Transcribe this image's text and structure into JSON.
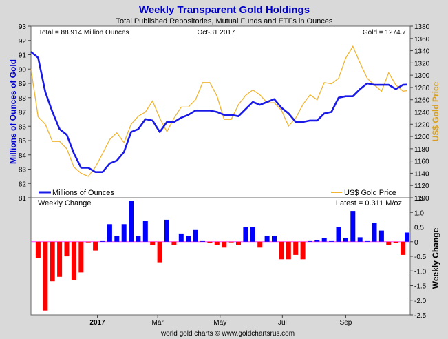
{
  "chart_data": [
    {
      "type": "line",
      "title": "Weekly Transparent Gold Holdings",
      "subtitle": "Total Published Repositories, Mutual Funds and ETFs in Ounces",
      "info_left": "Total = 88.914 Million Ounces",
      "info_center": "Oct-31  2017",
      "info_right": "Gold = 1274.7",
      "ylabel": "Millions of Ounces of Gold",
      "y2label": "US$ Gold Price",
      "ylim": [
        81,
        93
      ],
      "y2lim": [
        1100,
        1380
      ],
      "yticks": [
        "81",
        "82",
        "83",
        "84",
        "85",
        "86",
        "87",
        "88",
        "89",
        "90",
        "91",
        "92",
        "93"
      ],
      "y2ticks": [
        "1100",
        "1120",
        "1140",
        "1160",
        "1180",
        "1200",
        "1220",
        "1240",
        "1260",
        "1280",
        "1300",
        "1320",
        "1340",
        "1360",
        "1380"
      ],
      "grid": false,
      "x_start": "2016-10-28",
      "x_end": "2017-11-03",
      "legend": [
        {
          "label": "Millions of Ounces",
          "placement": "bottom-left"
        },
        {
          "label": "US$ Gold Price",
          "placement": "bottom-right"
        }
      ],
      "colors": {
        "holdings": "#1a1ae6",
        "price": "#f0b430"
      },
      "series": [
        {
          "name": "Millions of Ounces",
          "axis": "left",
          "x": [
            "2016-10-28",
            "2016-11-04",
            "2016-11-11",
            "2016-11-18",
            "2016-11-25",
            "2016-12-02",
            "2016-12-09",
            "2016-12-16",
            "2016-12-23",
            "2016-12-30",
            "2017-01-06",
            "2017-01-13",
            "2017-01-20",
            "2017-01-27",
            "2017-02-03",
            "2017-02-10",
            "2017-02-17",
            "2017-02-24",
            "2017-03-03",
            "2017-03-10",
            "2017-03-17",
            "2017-03-24",
            "2017-03-31",
            "2017-04-07",
            "2017-04-14",
            "2017-04-21",
            "2017-04-28",
            "2017-05-05",
            "2017-05-12",
            "2017-05-19",
            "2017-05-26",
            "2017-06-02",
            "2017-06-09",
            "2017-06-16",
            "2017-06-23",
            "2017-06-30",
            "2017-07-07",
            "2017-07-14",
            "2017-07-21",
            "2017-07-28",
            "2017-08-04",
            "2017-08-11",
            "2017-08-18",
            "2017-08-25",
            "2017-09-01",
            "2017-09-08",
            "2017-09-15",
            "2017-09-22",
            "2017-09-29",
            "2017-10-06",
            "2017-10-13",
            "2017-10-20",
            "2017-10-27",
            "2017-10-31"
          ],
          "values": [
            91.2,
            90.8,
            88.4,
            87.0,
            85.8,
            85.4,
            84.1,
            83.1,
            83.1,
            82.8,
            82.8,
            83.4,
            83.6,
            84.2,
            85.6,
            85.8,
            86.5,
            86.4,
            85.6,
            86.3,
            86.3,
            86.6,
            86.8,
            87.1,
            87.1,
            87.1,
            87.0,
            86.8,
            86.8,
            86.7,
            87.2,
            87.7,
            87.5,
            87.7,
            87.9,
            87.3,
            86.9,
            86.3,
            86.3,
            86.4,
            86.4,
            86.9,
            87.0,
            88.0,
            88.1,
            88.1,
            88.6,
            89.0,
            88.9,
            88.9,
            88.9,
            88.6,
            88.9,
            88.914
          ]
        },
        {
          "name": "US$ Gold Price",
          "axis": "right",
          "x": [
            "2016-10-28",
            "2016-11-04",
            "2016-11-11",
            "2016-11-18",
            "2016-11-25",
            "2016-12-02",
            "2016-12-09",
            "2016-12-16",
            "2016-12-23",
            "2016-12-30",
            "2017-01-06",
            "2017-01-13",
            "2017-01-20",
            "2017-01-27",
            "2017-02-03",
            "2017-02-10",
            "2017-02-17",
            "2017-02-24",
            "2017-03-03",
            "2017-03-10",
            "2017-03-17",
            "2017-03-24",
            "2017-03-31",
            "2017-04-07",
            "2017-04-14",
            "2017-04-21",
            "2017-04-28",
            "2017-05-05",
            "2017-05-12",
            "2017-05-19",
            "2017-05-26",
            "2017-06-02",
            "2017-06-09",
            "2017-06-16",
            "2017-06-23",
            "2017-06-30",
            "2017-07-07",
            "2017-07-14",
            "2017-07-21",
            "2017-07-28",
            "2017-08-04",
            "2017-08-11",
            "2017-08-18",
            "2017-08-25",
            "2017-09-01",
            "2017-09-08",
            "2017-09-15",
            "2017-09-22",
            "2017-09-29",
            "2017-10-06",
            "2017-10-13",
            "2017-10-20",
            "2017-10-27",
            "2017-10-31"
          ],
          "values": [
            1310,
            1232,
            1220,
            1192,
            1192,
            1180,
            1150,
            1140,
            1135,
            1150,
            1172,
            1195,
            1206,
            1190,
            1220,
            1233,
            1240,
            1258,
            1230,
            1208,
            1230,
            1248,
            1248,
            1260,
            1288,
            1288,
            1266,
            1228,
            1228,
            1252,
            1267,
            1276,
            1268,
            1255,
            1255,
            1243,
            1217,
            1230,
            1252,
            1268,
            1260,
            1288,
            1286,
            1295,
            1328,
            1347,
            1320,
            1295,
            1284,
            1274,
            1304,
            1284,
            1274,
            1274.7
          ]
        }
      ]
    },
    {
      "type": "bar",
      "title": "Weekly Change",
      "annotation": "Latest = 0.311 M/oz",
      "ylabel": "Weekly Change",
      "ylim": [
        -2.5,
        1.5
      ],
      "yticks": [
        "1.5",
        "1.0",
        "0.5",
        "0",
        "-0.5",
        "-1.0",
        "-1.5",
        "-2.0",
        "-2.5"
      ],
      "xticks": [
        {
          "date": "2017-01-01",
          "label": "2017",
          "bold": true
        },
        {
          "date": "2017-03-01",
          "label": "Mar"
        },
        {
          "date": "2017-05-01",
          "label": "May"
        },
        {
          "date": "2017-07-01",
          "label": "Jul"
        },
        {
          "date": "2017-09-01",
          "label": "Sep"
        }
      ],
      "colors": {
        "positive": "#0000ff",
        "negative": "#ff0000",
        "zero_line": "#ff44ff"
      },
      "x": [
        "2016-11-04",
        "2016-11-11",
        "2016-11-18",
        "2016-11-25",
        "2016-12-02",
        "2016-12-09",
        "2016-12-16",
        "2016-12-23",
        "2016-12-30",
        "2017-01-06",
        "2017-01-13",
        "2017-01-20",
        "2017-01-27",
        "2017-02-03",
        "2017-02-10",
        "2017-02-17",
        "2017-02-24",
        "2017-03-03",
        "2017-03-10",
        "2017-03-17",
        "2017-03-24",
        "2017-03-31",
        "2017-04-07",
        "2017-04-14",
        "2017-04-21",
        "2017-04-28",
        "2017-05-05",
        "2017-05-12",
        "2017-05-19",
        "2017-05-26",
        "2017-06-02",
        "2017-06-09",
        "2017-06-16",
        "2017-06-23",
        "2017-06-30",
        "2017-07-07",
        "2017-07-14",
        "2017-07-21",
        "2017-07-28",
        "2017-08-04",
        "2017-08-11",
        "2017-08-18",
        "2017-08-25",
        "2017-09-01",
        "2017-09-08",
        "2017-09-15",
        "2017-09-22",
        "2017-09-29",
        "2017-10-06",
        "2017-10-13",
        "2017-10-20",
        "2017-10-27",
        "2017-10-31"
      ],
      "values": [
        -0.55,
        -2.35,
        -1.35,
        -1.2,
        -0.5,
        -1.3,
        -1.05,
        -0.02,
        -0.3,
        0.02,
        0.6,
        0.2,
        0.6,
        1.4,
        0.2,
        0.7,
        -0.1,
        -0.7,
        0.75,
        -0.1,
        0.28,
        0.2,
        0.4,
        0.02,
        -0.05,
        -0.1,
        -0.2,
        -0.02,
        -0.1,
        0.5,
        0.5,
        -0.2,
        0.2,
        0.2,
        -0.6,
        -0.6,
        -0.45,
        -0.6,
        0.02,
        0.05,
        0.12,
        0.02,
        0.5,
        0.12,
        1.05,
        0.15,
        0.02,
        0.65,
        0.38,
        -0.1,
        -0.05,
        -0.45,
        0.311
      ]
    }
  ],
  "footer": "world gold charts © www.goldchartsrus.com"
}
